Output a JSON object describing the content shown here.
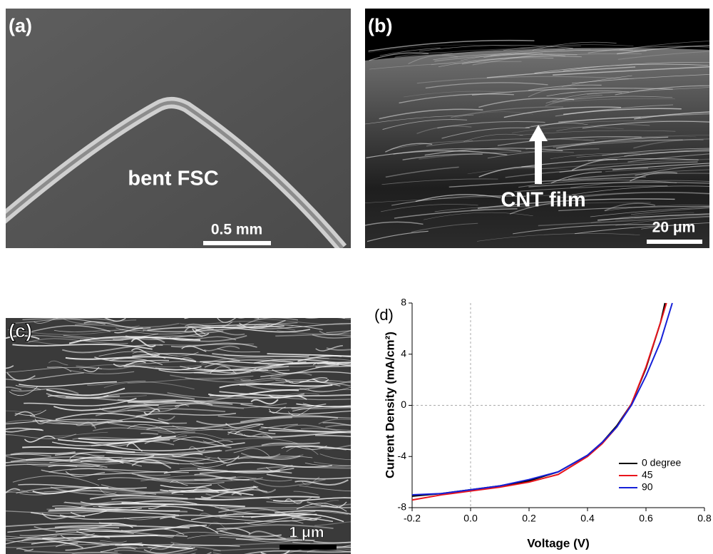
{
  "panels": [
    {
      "label": "(a)",
      "annotation": "bent FSC",
      "scale_bar": "0.5 mm"
    },
    {
      "label": "(b)",
      "annotation": "CNT film",
      "scale_bar": "20 μm"
    },
    {
      "label": "(c)",
      "scale_bar": "1 μm"
    }
  ],
  "chart_data": {
    "type": "line",
    "label": "(d)",
    "x_label": "Voltage (V)",
    "y_label": "Current Density (mA/cm²)",
    "xlim": [
      -0.2,
      0.8
    ],
    "ylim": [
      -8,
      8
    ],
    "xticks": [
      -0.2,
      {
        "value": 0,
        "label": "0.0"
      },
      0.2,
      0.4,
      0.6,
      0.8
    ],
    "yticks": [
      -8,
      -4,
      0,
      4,
      8
    ],
    "reference_lines": {
      "x": 0,
      "y": 0
    },
    "legend": "lower right",
    "series": [
      {
        "name": "0 degree",
        "color": "#000000",
        "x": [
          -0.2,
          -0.1,
          0,
          0.1,
          0.2,
          0.3,
          0.4,
          0.45,
          0.5,
          0.55,
          0.6,
          0.65,
          0.665
        ],
        "values": [
          -7.1,
          -6.9,
          -6.6,
          -6.3,
          -5.9,
          -5.2,
          -3.9,
          -2.9,
          -1.6,
          0.1,
          2.9,
          6.5,
          8
        ]
      },
      {
        "name": "45",
        "color": "#e8141c",
        "x": [
          -0.2,
          -0.1,
          0,
          0.1,
          0.2,
          0.3,
          0.4,
          0.45,
          0.5,
          0.55,
          0.6,
          0.65,
          0.67
        ],
        "values": [
          -7.4,
          -7.0,
          -6.7,
          -6.4,
          -6.0,
          -5.4,
          -4.0,
          -3.0,
          -1.7,
          0.1,
          3.0,
          6.5,
          8
        ]
      },
      {
        "name": "90",
        "color": "#1520d8",
        "x": [
          -0.2,
          -0.1,
          0,
          0.1,
          0.2,
          0.3,
          0.4,
          0.45,
          0.5,
          0.55,
          0.6,
          0.65,
          0.69
        ],
        "values": [
          -7.0,
          -6.9,
          -6.6,
          -6.3,
          -5.8,
          -5.2,
          -3.9,
          -2.9,
          -1.7,
          0.0,
          2.3,
          5.0,
          8
        ]
      }
    ]
  }
}
